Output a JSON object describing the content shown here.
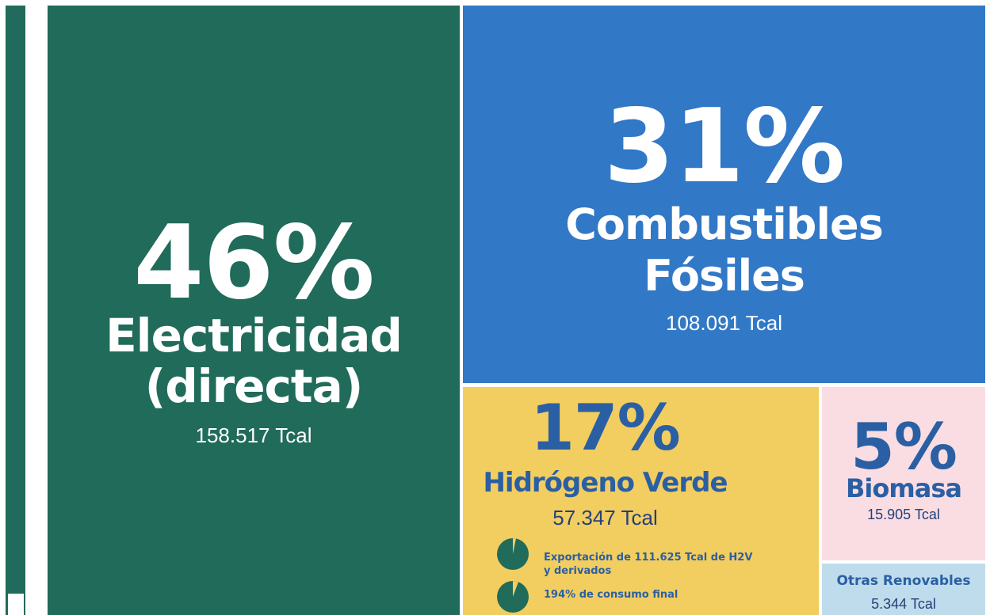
{
  "tiles": {
    "electricidad": {
      "percent": "46%",
      "name_line1": "Electricidad",
      "name_line2": "(directa)",
      "amount": "158.517 Tcal"
    },
    "fosiles": {
      "percent": "31%",
      "name_line1": "Combustibles",
      "name_line2": "Fósiles",
      "amount": "108.091 Tcal"
    },
    "hidrogeno": {
      "percent": "17%",
      "name": "Hidrógeno Verde",
      "amount": "57.347 Tcal",
      "notes": [
        "Exportación de 111.625 Tcal de H2V",
        "y derivados",
        "194% de consumo final"
      ]
    },
    "biomasa": {
      "percent": "5%",
      "name": "Biomasa",
      "amount": "15.905 Tcal"
    },
    "otras": {
      "name": "Otras Renovables",
      "amount": "5.344 Tcal"
    }
  }
}
